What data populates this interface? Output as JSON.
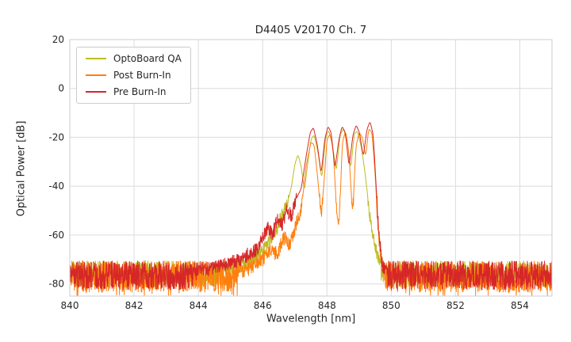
{
  "chart_data": {
    "type": "line",
    "title": "D4405 V20170 Ch. 7",
    "xlabel": "Wavelength [nm]",
    "ylabel": "Optical Power [dB]",
    "xlim": [
      840,
      855
    ],
    "ylim": [
      -85,
      20
    ],
    "xticks": [
      840,
      842,
      844,
      846,
      848,
      850,
      852,
      854
    ],
    "yticks": [
      20,
      0,
      -20,
      -40,
      -60,
      -80
    ],
    "grid": true,
    "grid_color": "#dcdcdc",
    "spine_color": "#cccccc",
    "background": "#ffffff",
    "text_color": "#262626",
    "legend_position": "upper left",
    "series": [
      {
        "name": "OptoBoard QA",
        "color": "#bcbd22",
        "noise_floor": -76,
        "noise_amp": 5.5,
        "deep_spikes": false,
        "peak_points": [
          [
            844.8,
            -75
          ],
          [
            845.4,
            -72
          ],
          [
            845.9,
            -68
          ],
          [
            846.15,
            -64
          ],
          [
            846.3,
            -60
          ],
          [
            846.45,
            -57
          ],
          [
            846.6,
            -52
          ],
          [
            846.75,
            -48
          ],
          [
            846.9,
            -40
          ],
          [
            847.0,
            -31
          ],
          [
            847.1,
            -27
          ],
          [
            847.2,
            -32
          ],
          [
            847.3,
            -42
          ],
          [
            847.4,
            -31
          ],
          [
            847.5,
            -21
          ],
          [
            847.6,
            -19
          ],
          [
            847.72,
            -26
          ],
          [
            847.84,
            -37
          ],
          [
            847.95,
            -21
          ],
          [
            848.05,
            -17
          ],
          [
            848.17,
            -23
          ],
          [
            848.29,
            -34
          ],
          [
            848.41,
            -19
          ],
          [
            848.51,
            -16.5
          ],
          [
            848.63,
            -21
          ],
          [
            848.74,
            -33
          ],
          [
            848.85,
            -18.5
          ],
          [
            848.95,
            -17.5
          ],
          [
            849.07,
            -24
          ],
          [
            849.18,
            -34
          ],
          [
            849.3,
            -48
          ],
          [
            849.42,
            -60
          ],
          [
            849.55,
            -68
          ],
          [
            849.7,
            -74
          ]
        ]
      },
      {
        "name": "Post Burn-In",
        "color": "#ff7f0e",
        "noise_floor": -77,
        "noise_amp": 6.5,
        "deep_spikes": true,
        "peak_points": [
          [
            845.2,
            -76
          ],
          [
            845.7,
            -73
          ],
          [
            846.0,
            -70
          ],
          [
            846.25,
            -66
          ],
          [
            846.45,
            -68
          ],
          [
            846.65,
            -61
          ],
          [
            846.85,
            -64
          ],
          [
            847.05,
            -55
          ],
          [
            847.2,
            -50
          ],
          [
            847.35,
            -32
          ],
          [
            847.5,
            -22
          ],
          [
            847.6,
            -23
          ],
          [
            847.7,
            -35
          ],
          [
            847.82,
            -52
          ],
          [
            847.9,
            -40
          ],
          [
            848.0,
            -21
          ],
          [
            848.1,
            -18.5
          ],
          [
            848.2,
            -26
          ],
          [
            848.3,
            -50
          ],
          [
            848.38,
            -56
          ],
          [
            848.48,
            -22
          ],
          [
            848.58,
            -17.5
          ],
          [
            848.68,
            -26
          ],
          [
            848.8,
            -52
          ],
          [
            848.9,
            -24
          ],
          [
            849.0,
            -18
          ],
          [
            849.1,
            -20
          ],
          [
            849.2,
            -28
          ],
          [
            849.3,
            -16.5
          ],
          [
            849.4,
            -18
          ],
          [
            849.5,
            -35
          ],
          [
            849.58,
            -55
          ],
          [
            849.68,
            -70
          ],
          [
            849.8,
            -76
          ]
        ]
      },
      {
        "name": "Pre Burn-In",
        "color": "#d62728",
        "noise_floor": -76.5,
        "noise_amp": 6,
        "deep_spikes": false,
        "peak_points": [
          [
            843.8,
            -76
          ],
          [
            844.6,
            -73
          ],
          [
            845.3,
            -70
          ],
          [
            845.8,
            -66
          ],
          [
            846.0,
            -61
          ],
          [
            846.15,
            -57
          ],
          [
            846.3,
            -60
          ],
          [
            846.45,
            -54
          ],
          [
            846.6,
            -56
          ],
          [
            846.75,
            -50
          ],
          [
            846.9,
            -52
          ],
          [
            847.05,
            -45
          ],
          [
            847.2,
            -41
          ],
          [
            847.35,
            -28
          ],
          [
            847.48,
            -18
          ],
          [
            847.58,
            -16
          ],
          [
            847.7,
            -23
          ],
          [
            847.82,
            -35
          ],
          [
            847.93,
            -21
          ],
          [
            848.03,
            -15.5
          ],
          [
            848.13,
            -18
          ],
          [
            848.25,
            -33
          ],
          [
            848.37,
            -21
          ],
          [
            848.47,
            -15.5
          ],
          [
            848.57,
            -18
          ],
          [
            848.69,
            -32
          ],
          [
            848.81,
            -19
          ],
          [
            848.91,
            -15
          ],
          [
            849.01,
            -18
          ],
          [
            849.13,
            -28
          ],
          [
            849.24,
            -17
          ],
          [
            849.34,
            -13.5
          ],
          [
            849.44,
            -19
          ],
          [
            849.53,
            -40
          ],
          [
            849.62,
            -60
          ],
          [
            849.72,
            -72
          ],
          [
            849.85,
            -76
          ]
        ]
      }
    ]
  }
}
